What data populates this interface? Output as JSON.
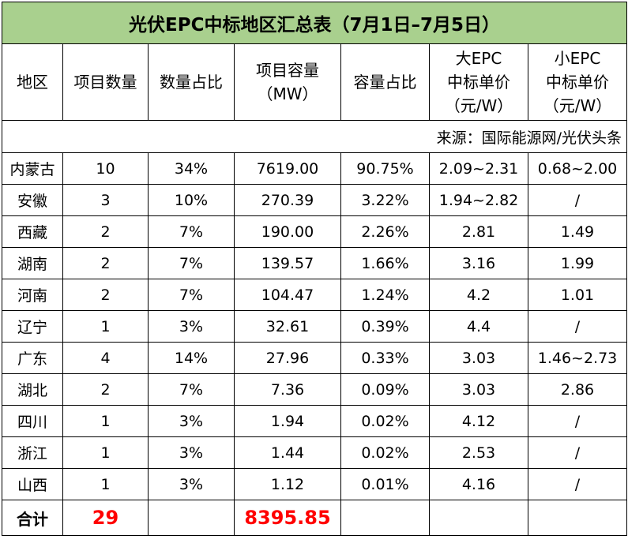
{
  "title": "光伏EPC中标地区汇总表（7月1日–7月5日）",
  "headers": [
    "地区",
    "项目数量",
    "数量占比",
    "项目容量\n（MW）",
    "容量占比",
    "大EPC\n中标单价\n（元/W）",
    "小EPC\n中标单价\n（元/W）"
  ],
  "source": "来源：国际能源网/光伏头条",
  "rows": [
    [
      "内蒙古",
      "10",
      "34%",
      "7619.00",
      "90.75%",
      "2.09~2.31",
      "0.68~2.00"
    ],
    [
      "安徽",
      "3",
      "10%",
      "270.39",
      "3.22%",
      "1.94~2.82",
      "/"
    ],
    [
      "西藏",
      "2",
      "7%",
      "190.00",
      "2.26%",
      "2.81",
      "1.49"
    ],
    [
      "湖南",
      "2",
      "7%",
      "139.57",
      "1.66%",
      "3.16",
      "1.99"
    ],
    [
      "河南",
      "2",
      "7%",
      "104.47",
      "1.24%",
      "4.2",
      "1.01"
    ],
    [
      "辽宁",
      "1",
      "3%",
      "32.61",
      "0.39%",
      "4.4",
      "/"
    ],
    [
      "广东",
      "4",
      "14%",
      "27.96",
      "0.33%",
      "3.03",
      "1.46~2.73"
    ],
    [
      "湖北",
      "2",
      "7%",
      "7.36",
      "0.09%",
      "3.03",
      "2.86"
    ],
    [
      "四川",
      "1",
      "3%",
      "1.94",
      "0.02%",
      "4.12",
      "/"
    ],
    [
      "浙江",
      "1",
      "3%",
      "1.44",
      "0.02%",
      "2.53",
      "/"
    ],
    [
      "山西",
      "1",
      "3%",
      "1.12",
      "0.01%",
      "4.16",
      "/"
    ]
  ],
  "total": {
    "label": "合计",
    "count": "29",
    "capacity": "8395.85"
  },
  "colors": {
    "title_bg": "#a9d08e",
    "total_highlight": "#ff0000"
  }
}
